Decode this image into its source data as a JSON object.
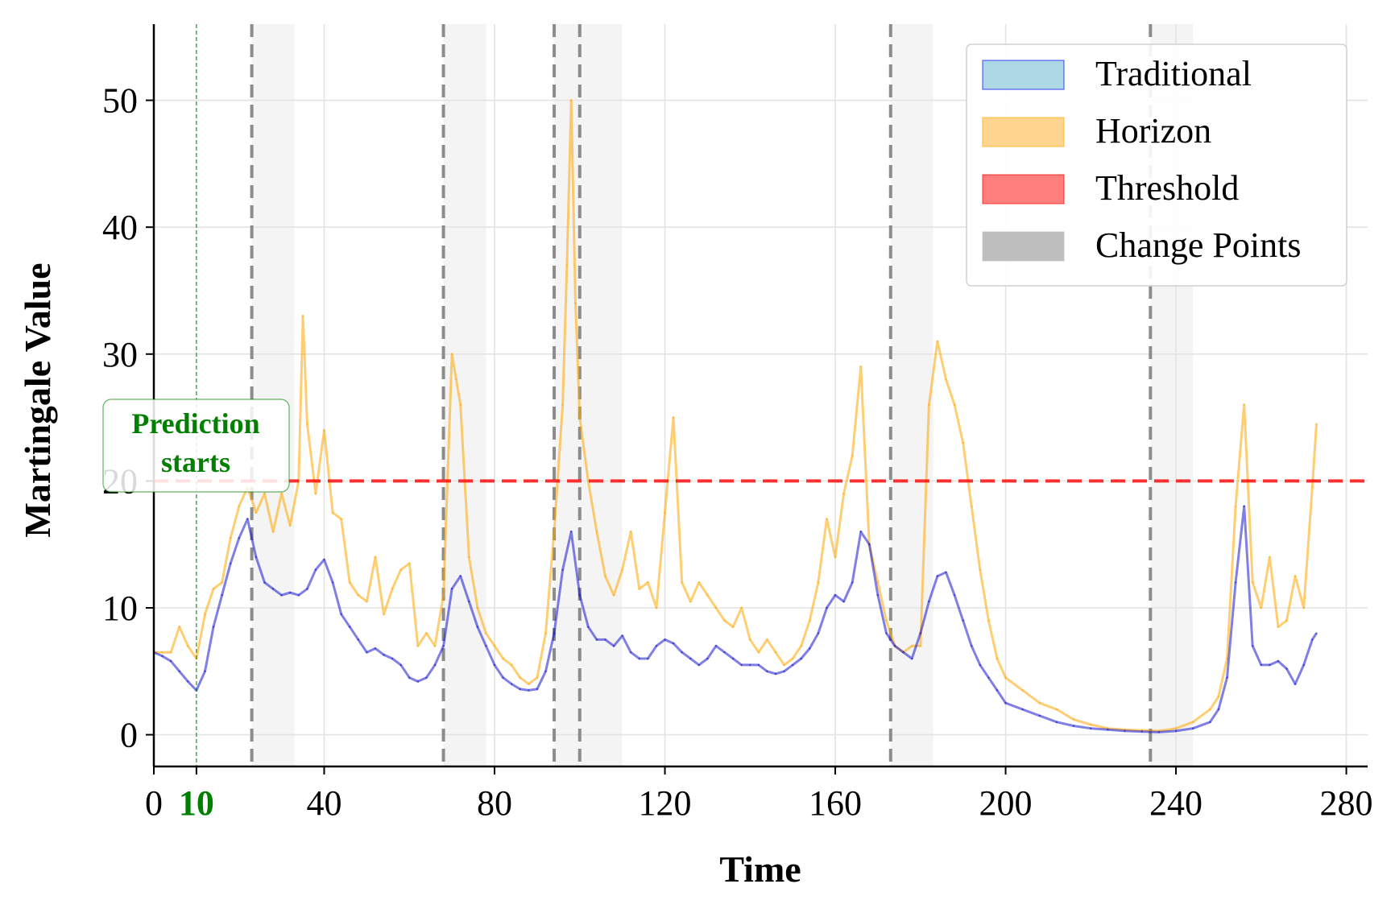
{
  "chart_data": {
    "type": "line",
    "xlabel": "Time",
    "ylabel": "Martingale Value",
    "xlim": [
      0,
      285
    ],
    "ylim": [
      -2.5,
      56
    ],
    "x_ticks": [
      0,
      40,
      80,
      120,
      160,
      200,
      240,
      280
    ],
    "y_ticks": [
      0,
      10,
      20,
      30,
      40,
      50
    ],
    "grid": true,
    "legend_position": "top-right",
    "legend": [
      {
        "label": "Traditional",
        "color": "#add8e6",
        "edge": "#0000ff"
      },
      {
        "label": "Horizon",
        "color": "#ffd590",
        "edge": "#ffa500"
      },
      {
        "label": "Threshold",
        "color": "#ff7f7f",
        "edge": "#ff0000"
      },
      {
        "label": "Change Points",
        "color": "#bebebe",
        "edge": "#bebebe"
      }
    ],
    "threshold": {
      "value": 20,
      "color": "#ff0000"
    },
    "prediction_start": {
      "x": 10,
      "tick_label": "10",
      "label": "Prediction\nstarts",
      "color": "#008000"
    },
    "change_points": [
      23,
      68,
      94,
      100,
      173,
      234
    ],
    "change_regions": [
      [
        23,
        33
      ],
      [
        68,
        78
      ],
      [
        94,
        110
      ],
      [
        173,
        183
      ],
      [
        234,
        244
      ]
    ],
    "series": [
      {
        "name": "Traditional",
        "color": "#0000cd",
        "x": [
          0,
          2,
          4,
          6,
          8,
          10,
          12,
          14,
          16,
          18,
          20,
          22,
          24,
          26,
          28,
          30,
          32,
          34,
          36,
          38,
          40,
          42,
          44,
          46,
          48,
          50,
          52,
          54,
          56,
          58,
          60,
          62,
          64,
          66,
          68,
          70,
          72,
          74,
          76,
          78,
          80,
          82,
          84,
          86,
          88,
          90,
          92,
          94,
          96,
          98,
          100,
          102,
          104,
          106,
          108,
          110,
          112,
          114,
          116,
          118,
          120,
          122,
          124,
          126,
          128,
          130,
          132,
          134,
          136,
          138,
          140,
          142,
          144,
          146,
          148,
          150,
          152,
          154,
          156,
          158,
          160,
          162,
          164,
          166,
          168,
          170,
          172,
          174,
          176,
          178,
          180,
          182,
          184,
          186,
          188,
          190,
          192,
          194,
          196,
          198,
          200,
          204,
          208,
          212,
          216,
          220,
          224,
          228,
          232,
          236,
          240,
          244,
          248,
          250,
          252,
          254,
          256,
          258,
          260,
          262,
          264,
          266,
          268,
          270,
          272,
          273
        ],
        "values": [
          6.5,
          6.2,
          5.8,
          5.0,
          4.2,
          3.5,
          5.0,
          8.5,
          11.0,
          13.5,
          15.5,
          17.0,
          14.0,
          12.0,
          11.5,
          11.0,
          11.2,
          11.0,
          11.5,
          13.0,
          13.8,
          12.0,
          9.5,
          8.5,
          7.5,
          6.5,
          6.8,
          6.3,
          6.0,
          5.5,
          4.5,
          4.2,
          4.5,
          5.5,
          7.0,
          11.5,
          12.5,
          10.5,
          8.5,
          7.0,
          5.5,
          4.5,
          4.0,
          3.6,
          3.5,
          3.6,
          5.0,
          8.0,
          13.0,
          16.0,
          11.0,
          8.5,
          7.5,
          7.5,
          7.0,
          7.8,
          6.5,
          6.0,
          6.0,
          7.0,
          7.5,
          7.2,
          6.5,
          6.0,
          5.5,
          6.0,
          7.0,
          6.5,
          6.0,
          5.5,
          5.5,
          5.5,
          5.0,
          4.8,
          5.0,
          5.5,
          6.0,
          6.8,
          8.0,
          10.0,
          11.0,
          10.5,
          12.0,
          16.0,
          15.0,
          11.0,
          8.0,
          7.0,
          6.5,
          6.0,
          8.0,
          10.5,
          12.5,
          12.8,
          11.0,
          9.0,
          7.0,
          5.5,
          4.5,
          3.5,
          2.5,
          2.0,
          1.5,
          1.0,
          0.7,
          0.5,
          0.4,
          0.3,
          0.25,
          0.2,
          0.3,
          0.5,
          1.0,
          2.0,
          4.5,
          12.0,
          18.0,
          7.0,
          5.5,
          5.5,
          5.8,
          5.2,
          4.0,
          5.5,
          7.5,
          8.0
        ]
      },
      {
        "name": "Horizon",
        "color": "#ffa500",
        "x": [
          0,
          2,
          4,
          6,
          8,
          10,
          12,
          14,
          16,
          18,
          20,
          22,
          24,
          26,
          28,
          30,
          32,
          34,
          35,
          36,
          38,
          40,
          42,
          44,
          46,
          48,
          50,
          52,
          54,
          56,
          58,
          60,
          62,
          64,
          66,
          68,
          70,
          71,
          72,
          74,
          76,
          78,
          80,
          82,
          84,
          86,
          88,
          90,
          92,
          94,
          96,
          97,
          98,
          99,
          100,
          102,
          104,
          106,
          108,
          110,
          112,
          114,
          116,
          118,
          120,
          122,
          124,
          126,
          128,
          130,
          132,
          134,
          136,
          138,
          140,
          142,
          144,
          146,
          148,
          150,
          152,
          154,
          156,
          158,
          160,
          162,
          164,
          166,
          168,
          170,
          172,
          174,
          176,
          178,
          180,
          182,
          184,
          186,
          188,
          190,
          192,
          194,
          196,
          198,
          200,
          204,
          208,
          212,
          216,
          220,
          224,
          228,
          232,
          236,
          240,
          244,
          248,
          250,
          252,
          254,
          256,
          258,
          260,
          262,
          264,
          266,
          268,
          270,
          272,
          273
        ],
        "values": [
          6.5,
          6.5,
          6.5,
          8.5,
          7.0,
          6.0,
          9.5,
          11.5,
          12.0,
          15.5,
          18.0,
          19.5,
          17.5,
          19.0,
          16.0,
          19.0,
          16.5,
          20.0,
          33.0,
          24.5,
          19.0,
          24.0,
          17.5,
          17.0,
          12.0,
          11.0,
          10.5,
          14.0,
          9.5,
          11.5,
          13.0,
          13.5,
          7.0,
          8.0,
          7.0,
          11.0,
          30.0,
          28.0,
          26.0,
          14.0,
          10.0,
          8.0,
          7.0,
          6.0,
          5.5,
          4.5,
          4.0,
          4.5,
          8.0,
          16.0,
          26.0,
          37.0,
          50.0,
          34.0,
          25.0,
          20.0,
          16.0,
          12.5,
          11.0,
          13.0,
          16.0,
          11.5,
          12.0,
          10.0,
          17.5,
          25.0,
          12.0,
          10.5,
          12.0,
          11.0,
          10.0,
          9.0,
          8.5,
          10.0,
          7.5,
          6.5,
          7.5,
          6.5,
          5.5,
          6.0,
          7.0,
          9.0,
          12.0,
          17.0,
          14.0,
          19.0,
          22.0,
          29.0,
          15.0,
          12.0,
          9.0,
          7.0,
          6.5,
          7.0,
          7.0,
          26.0,
          31.0,
          28.0,
          26.0,
          23.0,
          18.0,
          13.0,
          9.0,
          6.0,
          4.5,
          3.5,
          2.5,
          2.0,
          1.2,
          0.8,
          0.5,
          0.4,
          0.35,
          0.3,
          0.5,
          1.0,
          2.0,
          3.0,
          6.0,
          18.0,
          26.0,
          12.0,
          10.0,
          14.0,
          8.5,
          9.0,
          12.5,
          10.0,
          19.5,
          24.5
        ]
      }
    ]
  }
}
